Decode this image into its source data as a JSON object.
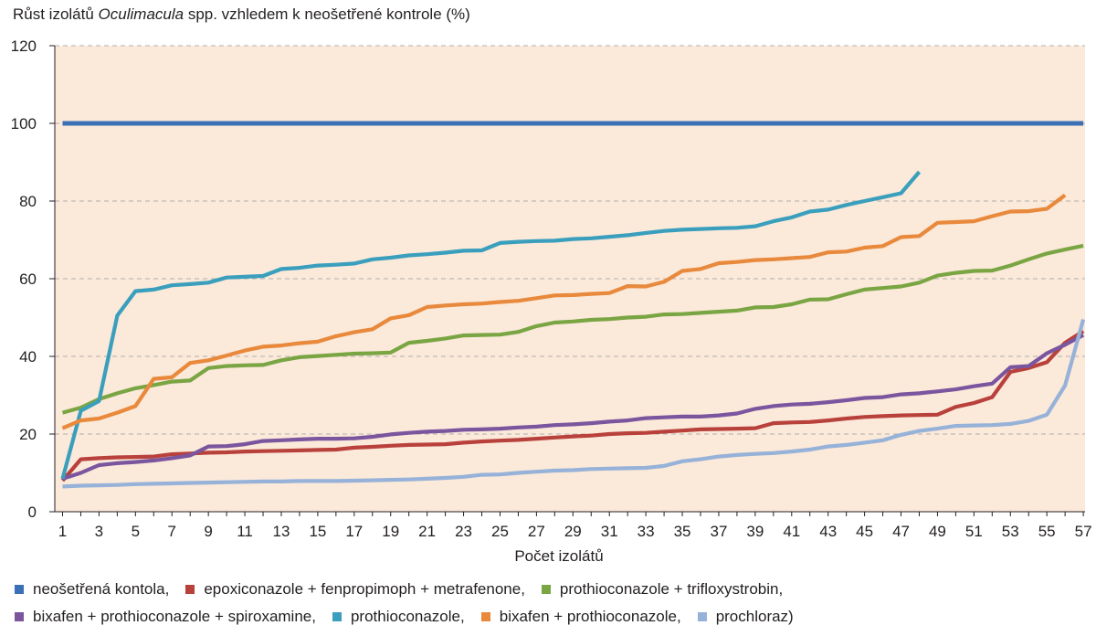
{
  "chart_data": {
    "type": "line",
    "title_parts": {
      "before": "Růst izolátů ",
      "italic": "Oculimacula",
      "after": " spp. vzhledem k neošetřené kontrole (%)"
    },
    "xlabel": "Počet izolátů",
    "ylabel": "",
    "ylim": [
      0,
      120
    ],
    "yticks": [
      0,
      20,
      40,
      60,
      80,
      100,
      120
    ],
    "xlim": [
      1,
      57
    ],
    "xticks": [
      1,
      3,
      5,
      7,
      9,
      11,
      13,
      15,
      17,
      19,
      21,
      23,
      25,
      27,
      29,
      31,
      33,
      35,
      37,
      39,
      41,
      43,
      45,
      47,
      49,
      51,
      53,
      55,
      57
    ],
    "grid": "horizontal-dashed",
    "plot_background": "#fbe9da",
    "legend_position": "bottom",
    "series": [
      {
        "name": "neošetřená kontola,",
        "color": "#3b6fb6",
        "start_x": 1,
        "values": [
          100,
          100,
          100,
          100,
          100,
          100,
          100,
          100,
          100,
          100,
          100,
          100,
          100,
          100,
          100,
          100,
          100,
          100,
          100,
          100,
          100,
          100,
          100,
          100,
          100,
          100,
          100,
          100,
          100,
          100,
          100,
          100,
          100,
          100,
          100,
          100,
          100,
          100,
          100,
          100,
          100,
          100,
          100,
          100,
          100,
          100,
          100,
          100,
          100,
          100,
          100,
          100,
          100,
          100,
          100,
          100,
          100
        ]
      },
      {
        "name": "epoxiconazole + fenpropimoph + metrafenone,",
        "color": "#b9413c",
        "start_x": 1,
        "values": [
          8,
          13.5,
          13.8,
          14,
          14.1,
          14.2,
          14.8,
          15,
          15.2,
          15.3,
          15.5,
          15.6,
          15.7,
          15.8,
          15.9,
          16,
          16.5,
          16.7,
          17,
          17.2,
          17.3,
          17.4,
          17.8,
          18.1,
          18.3,
          18.5,
          18.8,
          19.1,
          19.4,
          19.6,
          20,
          20.2,
          20.3,
          20.6,
          20.9,
          21.2,
          21.3,
          21.4,
          21.5,
          22.8,
          23,
          23.1,
          23.5,
          24,
          24.4,
          24.6,
          24.8,
          24.9,
          25,
          27,
          28,
          29.5,
          36,
          37,
          38.5,
          43.5,
          46.5
        ]
      },
      {
        "name": "prothioconazole + trifloxystrobin,",
        "color": "#7aa543",
        "start_x": 1,
        "values": [
          25.5,
          26.8,
          29,
          30.5,
          31.8,
          32.6,
          33.5,
          33.8,
          37,
          37.5,
          37.7,
          37.8,
          39,
          39.8,
          40.1,
          40.4,
          40.7,
          40.8,
          41,
          43.5,
          44,
          44.6,
          45.4,
          45.5,
          45.6,
          46.3,
          47.8,
          48.7,
          49,
          49.4,
          49.6,
          50,
          50.2,
          50.8,
          50.9,
          51.2,
          51.5,
          51.8,
          52.6,
          52.7,
          53.4,
          54.6,
          54.7,
          56,
          57.2,
          57.6,
          58,
          59,
          60.8,
          61.5,
          62,
          62.1,
          63.4,
          65,
          66.5,
          67.5,
          68.5
        ]
      },
      {
        "name": "bixafen + prothioconazole + spiroxamine,",
        "color": "#7b559e",
        "start_x": 1,
        "values": [
          8.5,
          10,
          12,
          12.5,
          12.8,
          13.2,
          13.8,
          14.5,
          16.8,
          16.9,
          17.4,
          18.2,
          18.4,
          18.6,
          18.8,
          18.8,
          18.9,
          19.3,
          19.9,
          20.3,
          20.6,
          20.8,
          21.1,
          21.2,
          21.4,
          21.7,
          21.9,
          22.3,
          22.5,
          22.8,
          23.2,
          23.5,
          24.1,
          24.3,
          24.5,
          24.5,
          24.8,
          25.3,
          26.5,
          27.2,
          27.6,
          27.8,
          28.2,
          28.7,
          29.3,
          29.5,
          30.2,
          30.5,
          31,
          31.5,
          32.3,
          33,
          37.2,
          37.5,
          40.8,
          43,
          45.5
        ]
      },
      {
        "name": "prothioconazole,",
        "color": "#3a9fbd",
        "start_x": 1,
        "values": [
          8.5,
          26,
          28.5,
          50.5,
          56.8,
          57.2,
          58.3,
          58.6,
          59,
          60.3,
          60.5,
          60.7,
          62.5,
          62.8,
          63.4,
          63.6,
          63.9,
          65,
          65.4,
          66,
          66.3,
          66.7,
          67.2,
          67.3,
          69.2,
          69.5,
          69.7,
          69.8,
          70.2,
          70.4,
          70.8,
          71.2,
          71.8,
          72.3,
          72.6,
          72.8,
          73,
          73.1,
          73.5,
          74.8,
          75.8,
          77.3,
          77.8,
          79,
          80,
          81,
          82,
          87.5
        ]
      },
      {
        "name": "bixafen + prothioconazole,",
        "color": "#e8893c",
        "start_x": 1,
        "values": [
          21.5,
          23.5,
          24,
          25.5,
          27.2,
          34.2,
          34.6,
          38.3,
          39,
          40.2,
          41.5,
          42.5,
          42.8,
          43.4,
          43.8,
          45.2,
          46.2,
          47,
          49.8,
          50.6,
          52.7,
          53.1,
          53.4,
          53.6,
          54,
          54.3,
          55,
          55.7,
          55.8,
          56.1,
          56.3,
          58.1,
          58,
          59.2,
          62,
          62.5,
          64,
          64.3,
          64.8,
          65,
          65.3,
          65.6,
          66.8,
          67,
          68,
          68.4,
          70.7,
          71,
          74.4,
          74.6,
          74.8,
          76.1,
          77.3,
          77.4,
          78,
          81.5
        ]
      },
      {
        "name": "prochloraz)",
        "color": "#96b2d8",
        "start_x": 1,
        "values": [
          6.5,
          6.7,
          6.8,
          6.9,
          7.1,
          7.2,
          7.3,
          7.4,
          7.5,
          7.6,
          7.7,
          7.8,
          7.8,
          7.9,
          7.9,
          7.9,
          8,
          8.1,
          8.2,
          8.3,
          8.5,
          8.7,
          9,
          9.5,
          9.6,
          10,
          10.3,
          10.6,
          10.7,
          11,
          11.1,
          11.2,
          11.3,
          11.8,
          13,
          13.5,
          14.2,
          14.6,
          14.9,
          15.1,
          15.5,
          16,
          16.8,
          17.2,
          17.8,
          18.4,
          19.8,
          20.8,
          21.4,
          22.1,
          22.2,
          22.3,
          22.6,
          23.4,
          25,
          32.5,
          49.5
        ]
      }
    ]
  },
  "legend_rows": [
    [
      0,
      1,
      2
    ],
    [
      3,
      4,
      5,
      6
    ]
  ]
}
